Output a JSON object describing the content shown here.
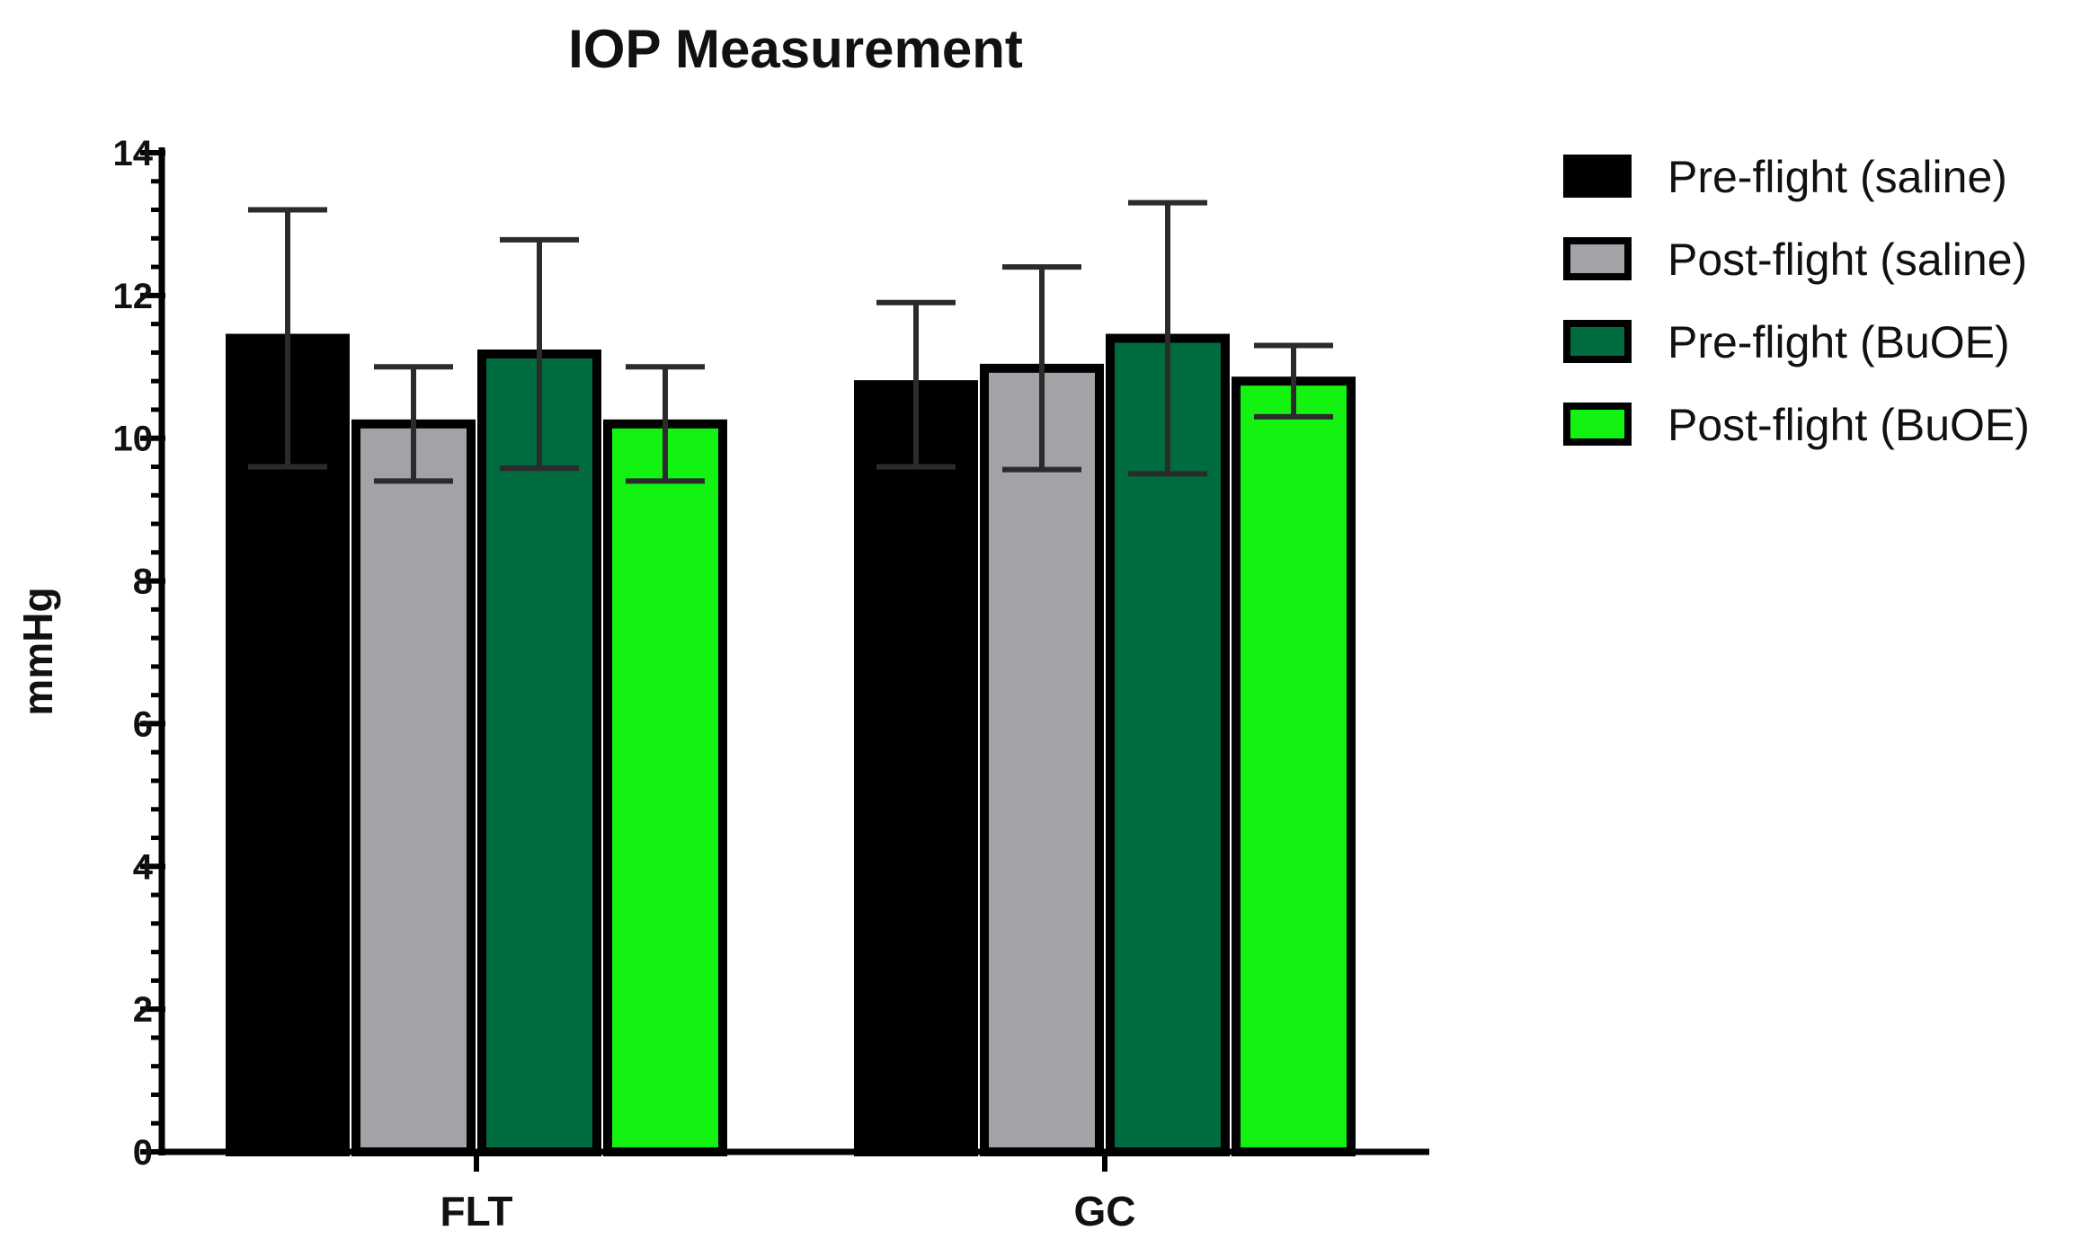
{
  "chart_data": {
    "type": "bar",
    "title": "IOP Measurement",
    "xlabel": "",
    "ylabel": "mmHg",
    "ylim": [
      0,
      14
    ],
    "yticks": [
      "0",
      "2",
      "4",
      "6",
      "8",
      "10",
      "12",
      "14"
    ],
    "ytick_values": [
      0,
      2,
      4,
      6,
      8,
      10,
      12,
      14
    ],
    "minor_ticks_per_major": 5,
    "categories": [
      "FLT",
      "GC"
    ],
    "series": [
      {
        "name": "Pre-flight (saline)",
        "color": "#000000",
        "values": [
          11.4,
          10.75
        ],
        "error": [
          1.8,
          1.15
        ]
      },
      {
        "name": "Post-flight (saline)",
        "color": "#a3a2a7",
        "values": [
          10.2,
          10.98
        ],
        "error": [
          0.8,
          1.42
        ]
      },
      {
        "name": "Pre-flight (BuOE)",
        "color": "#006b3f",
        "values": [
          11.18,
          11.4
        ],
        "error": [
          1.6,
          1.9
        ]
      },
      {
        "name": "Post-flight (BuOE)",
        "color": "#12f312",
        "values": [
          10.2,
          10.8
        ],
        "error": [
          0.8,
          0.5
        ]
      }
    ],
    "legend_position": "right",
    "grid": false
  }
}
